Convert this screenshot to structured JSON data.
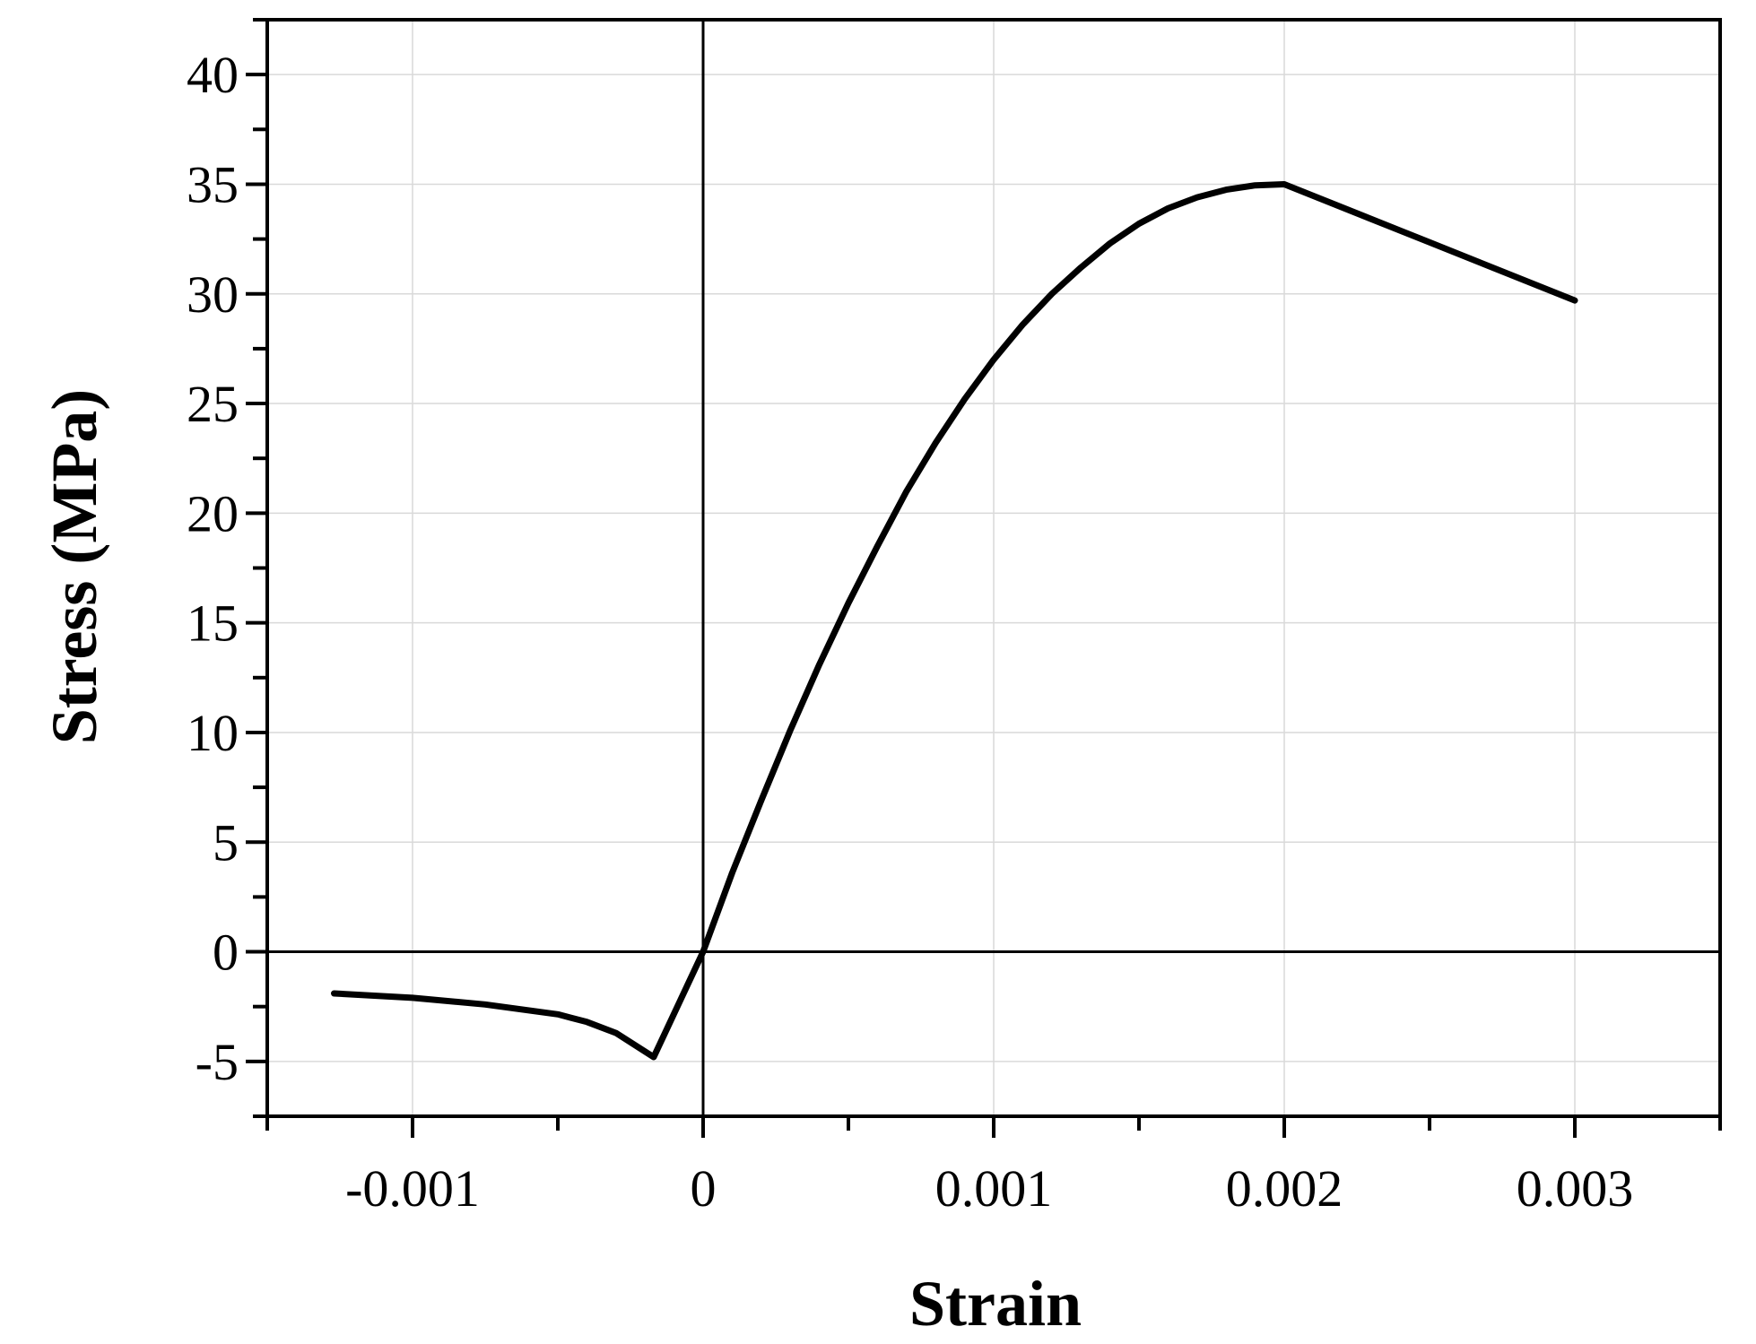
{
  "chart_data": {
    "type": "line",
    "title": "",
    "xlabel": "Strain",
    "ylabel": "Stress (MPa)",
    "xlim": [
      -0.0015,
      0.0035
    ],
    "ylim": [
      -7.5,
      42.5
    ],
    "xticks": [
      -0.001,
      0,
      0.001,
      0.002,
      0.003
    ],
    "xtick_labels": [
      "-0.001",
      "0",
      "0.001",
      "0.002",
      "0.003"
    ],
    "yticks": [
      -5,
      0,
      5,
      10,
      15,
      20,
      25,
      30,
      35,
      40
    ],
    "ytick_labels": [
      "-5",
      "0",
      "5",
      "10",
      "15",
      "20",
      "25",
      "30",
      "35",
      "40"
    ],
    "grid": true,
    "legend": "none",
    "series": [
      {
        "color": "#000000",
        "x": [
          -0.00127,
          -0.001,
          -0.00075,
          -0.0005,
          -0.0004,
          -0.0003,
          -0.00017,
          0,
          0.0001,
          0.0002,
          0.0003,
          0.0004,
          0.0005,
          0.0006,
          0.0007,
          0.0008,
          0.0009,
          0.001,
          0.0011,
          0.0012,
          0.0013,
          0.0014,
          0.0015,
          0.0016,
          0.0017,
          0.0018,
          0.0019,
          0.002,
          0.0025,
          0.003
        ],
        "y": [
          -1.9,
          -2.1,
          -2.4,
          -2.85,
          -3.2,
          -3.7,
          -4.8,
          0,
          3.6,
          6.9,
          10.1,
          13.1,
          15.9,
          18.5,
          21.0,
          23.2,
          25.2,
          27.0,
          28.6,
          30.0,
          31.2,
          32.3,
          33.2,
          33.9,
          34.4,
          34.75,
          34.95,
          35.0,
          32.35,
          29.7
        ]
      }
    ]
  }
}
